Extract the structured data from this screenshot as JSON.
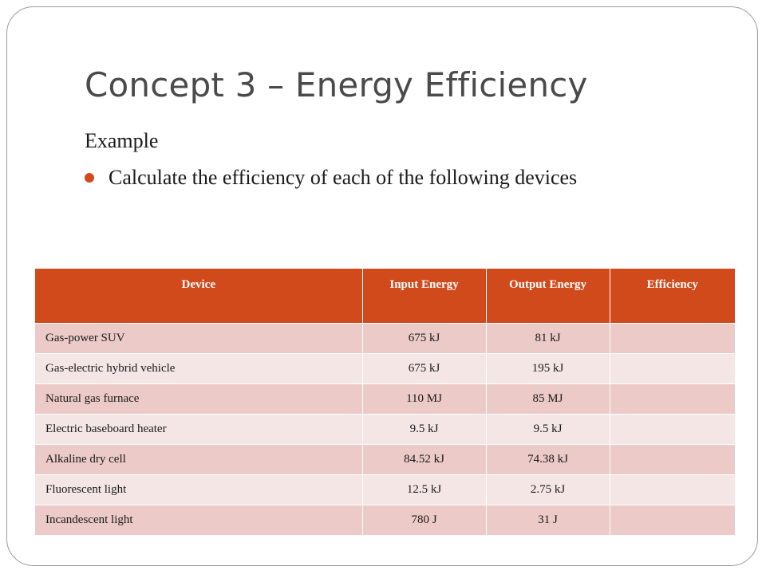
{
  "slide": {
    "title": "Concept 3 – Energy Efficiency",
    "subheading": "Example",
    "bullet": "Calculate the efficiency of each of the following devices"
  },
  "colors": {
    "accent": "#d14a1c",
    "row_dark": "#ebcac7",
    "row_light": "#f4e6e5",
    "title_text": "#4a4a4a"
  },
  "table": {
    "headers": {
      "device": "Device",
      "input": "Input Energy",
      "output": "Output Energy",
      "efficiency": "Efficiency"
    },
    "rows": [
      {
        "device": "Gas-power SUV",
        "input": "675 kJ",
        "output": "81 kJ",
        "efficiency": ""
      },
      {
        "device": "Gas-electric hybrid vehicle",
        "input": "675 kJ",
        "output": "195 kJ",
        "efficiency": ""
      },
      {
        "device": "Natural gas furnace",
        "input": "110 MJ",
        "output": "85 MJ",
        "efficiency": ""
      },
      {
        "device": "Electric baseboard heater",
        "input": "9.5 kJ",
        "output": "9.5 kJ",
        "efficiency": ""
      },
      {
        "device": "Alkaline dry cell",
        "input": "84.52 kJ",
        "output": "74.38 kJ",
        "efficiency": ""
      },
      {
        "device": "Fluorescent light",
        "input": "12.5 kJ",
        "output": "2.75 kJ",
        "efficiency": ""
      },
      {
        "device": "Incandescent light",
        "input": "780 J",
        "output": "31 J",
        "efficiency": ""
      }
    ]
  }
}
